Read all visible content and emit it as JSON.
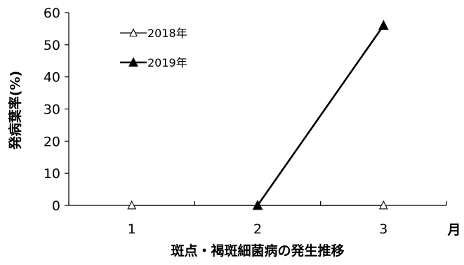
{
  "chart_data": {
    "type": "line",
    "title": "",
    "xlabel": "斑点・褐斑細菌病の発生推移",
    "xunit": "月",
    "ylabel": "発病葉率(%)",
    "categories": [
      "1",
      "2",
      "3"
    ],
    "ylim": [
      0,
      60
    ],
    "yticks": [
      "0",
      "10",
      "20",
      "30",
      "40",
      "50",
      "60"
    ],
    "grid": false,
    "legend_position": "top-left",
    "series": [
      {
        "name": "2018年",
        "values": [
          0,
          0,
          0
        ],
        "marker": "open-triangle",
        "color": "#000000",
        "line": true
      },
      {
        "name": "2019年",
        "values": [
          null,
          0,
          56
        ],
        "marker": "filled-triangle",
        "color": "#000000",
        "line": true
      }
    ]
  }
}
